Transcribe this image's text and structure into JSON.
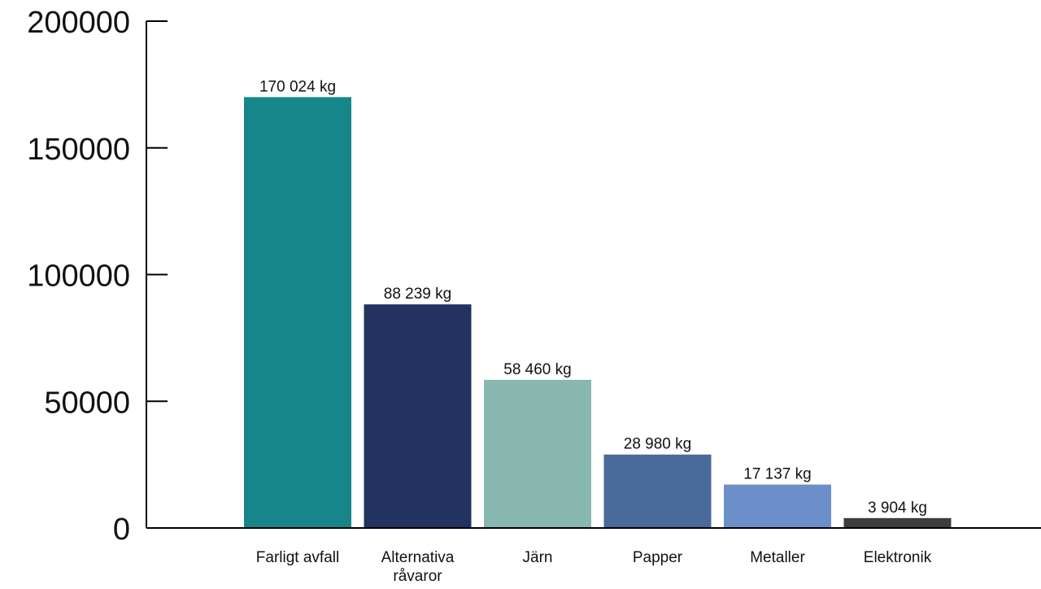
{
  "chart_data": {
    "type": "bar",
    "categories": [
      [
        "Farligt avfall"
      ],
      [
        "Alternativa",
        "råvaror"
      ],
      [
        "Järn"
      ],
      [
        "Papper"
      ],
      [
        "Metaller"
      ],
      [
        "Elektronik"
      ]
    ],
    "values": [
      170024,
      88239,
      58460,
      28980,
      17137,
      3904
    ],
    "data_labels": [
      "170 024 kg",
      "88 239 kg",
      "58 460 kg",
      "28 980 kg",
      "17 137 kg",
      "3 904 kg"
    ],
    "bar_colors": [
      "#17868b",
      "#233361",
      "#89b8b0",
      "#4a6a9b",
      "#6c8fc9",
      "#3d3d3d"
    ],
    "yticks": [
      0,
      50000,
      100000,
      150000,
      200000
    ],
    "ytick_labels": [
      "0",
      "50000",
      "100000",
      "150000",
      "200000"
    ],
    "ylim": [
      0,
      200000
    ],
    "title": "",
    "xlabel": "",
    "ylabel": "",
    "grid": false,
    "legend": "none"
  }
}
